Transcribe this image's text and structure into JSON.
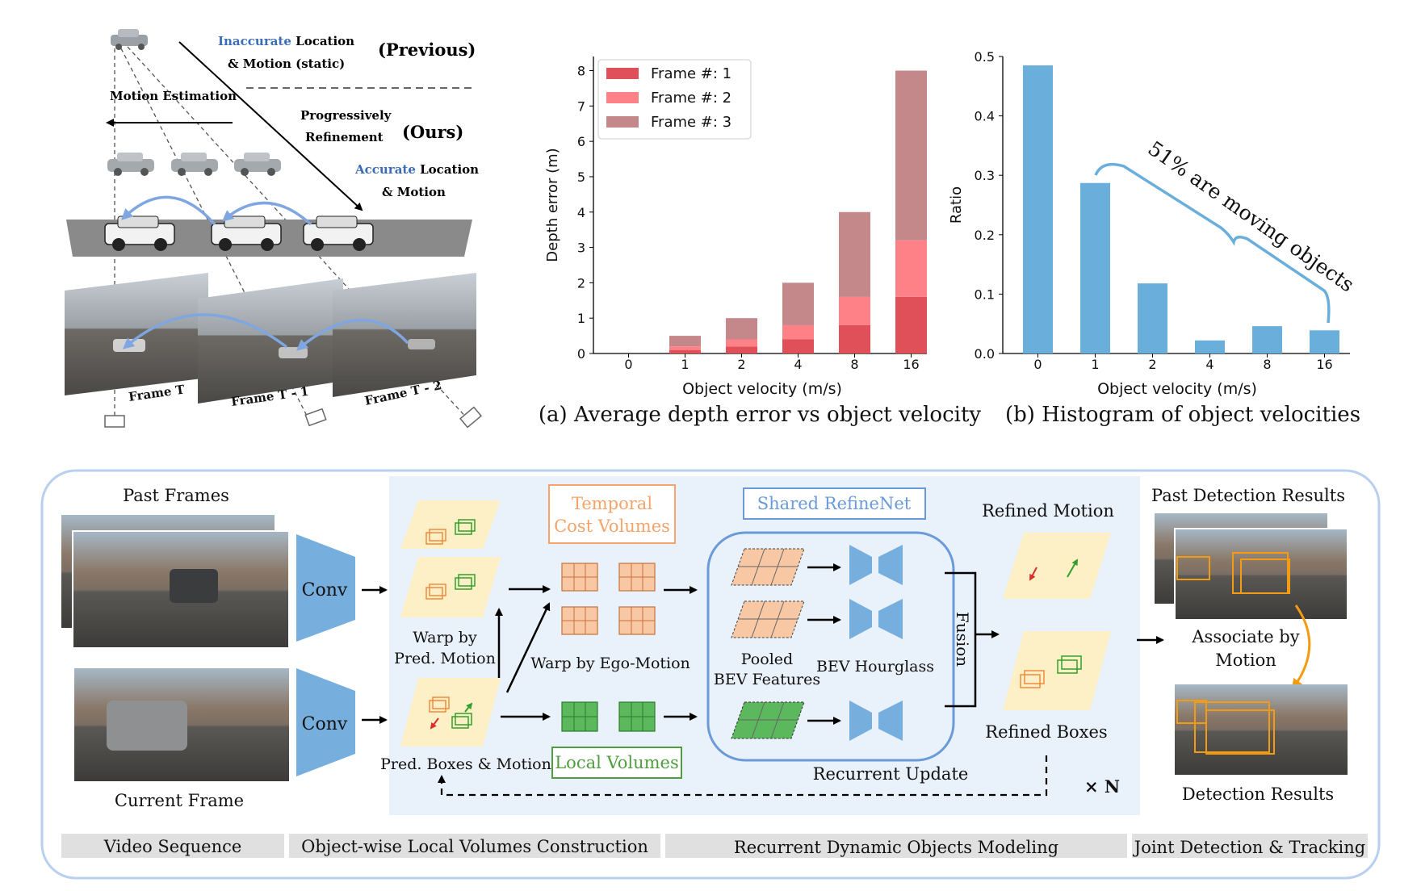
{
  "top_left": {
    "inaccurate_word": "Inaccurate",
    "location_word": " Location",
    "motion_static": "& Motion (static)",
    "previous": "(Previous)",
    "motion_estimation": "Motion Estimation",
    "progressively": "Progressively",
    "refinement": "Refinement",
    "ours": "(Ours)",
    "accurate_word": "Accurate",
    "location_word2": " Location",
    "and_motion": "& Motion",
    "frame_labels": [
      "Frame T",
      "Frame T - 1",
      "Frame T - 2"
    ]
  },
  "colors": {
    "frame1": "#e05059",
    "frame2": "#fd8187",
    "frame3": "#c4878a",
    "hist": "#6aaedb",
    "accent_blue": "#3b6db6",
    "bg_panel": "#e9f1fa",
    "orange": "#f39c12",
    "green": "#33a02c",
    "temporal_border": "#f4a36b",
    "refinenet_border": "#6b9ad8",
    "local_border": "#4f9d3f"
  },
  "chart_data": [
    {
      "type": "bar",
      "stacked": true,
      "title": "",
      "caption": "(a) Average depth error vs object velocity",
      "categories": [
        "0",
        "1",
        "2",
        "4",
        "8",
        "16"
      ],
      "series": [
        {
          "name": "Frame #: 1",
          "values": [
            0,
            0.1,
            0.2,
            0.4,
            0.8,
            1.6
          ]
        },
        {
          "name": "Frame #: 2",
          "values": [
            0,
            0.1,
            0.2,
            0.4,
            0.8,
            1.6
          ]
        },
        {
          "name": "Frame #: 3",
          "values": [
            0,
            0.3,
            0.6,
            1.2,
            2.4,
            4.8
          ]
        }
      ],
      "xlabel": "Object velocity (m/s)",
      "ylabel": "Depth error (m)",
      "ylim": [
        0,
        8.4
      ],
      "yticks": [
        0,
        1,
        2,
        3,
        4,
        5,
        6,
        7,
        8
      ],
      "legend": "top-left",
      "grid": false
    },
    {
      "type": "bar",
      "title": "",
      "caption": "(b) Histogram of object velocities",
      "categories": [
        "0",
        "1",
        "2",
        "4",
        "8",
        "16"
      ],
      "values": [
        0.485,
        0.287,
        0.118,
        0.022,
        0.046,
        0.039
      ],
      "xlabel": "Object velocity (m/s)",
      "ylabel": "Ratio",
      "ylim": [
        0,
        0.5
      ],
      "yticks": [
        0.0,
        0.1,
        0.2,
        0.3,
        0.4,
        0.5
      ],
      "annotation": "51% are moving objects",
      "grid": false
    }
  ],
  "pipeline": {
    "past_frames": "Past Frames",
    "current_frame": "Current Frame",
    "conv": "Conv",
    "warp_pred_1": "Warp by",
    "warp_pred_2": "Pred. Motion",
    "pred_boxes": "Pred. Boxes & Motion",
    "temporal_1": "Temporal",
    "temporal_2": "Cost Volumes",
    "warp_ego": "Warp by Ego-Motion",
    "local_volumes": "Local Volumes",
    "shared_refinenet": "Shared RefineNet",
    "pooled_1": "Pooled",
    "pooled_2": "BEV Features",
    "bev_hourglass": "BEV Hourglass",
    "fusion": "Fusion",
    "refined_motion": "Refined Motion",
    "refined_boxes": "Refined Boxes",
    "recurrent_update": "Recurrent Update",
    "times_n": "× N",
    "past_detection": "Past Detection Results",
    "associate_1": "Associate by",
    "associate_2": "Motion",
    "detection_results": "Detection Results"
  },
  "sections": [
    "Video Sequence",
    "Object-wise Local Volumes Construction",
    "Recurrent Dynamic Objects Modeling",
    "Joint Detection & Tracking"
  ]
}
